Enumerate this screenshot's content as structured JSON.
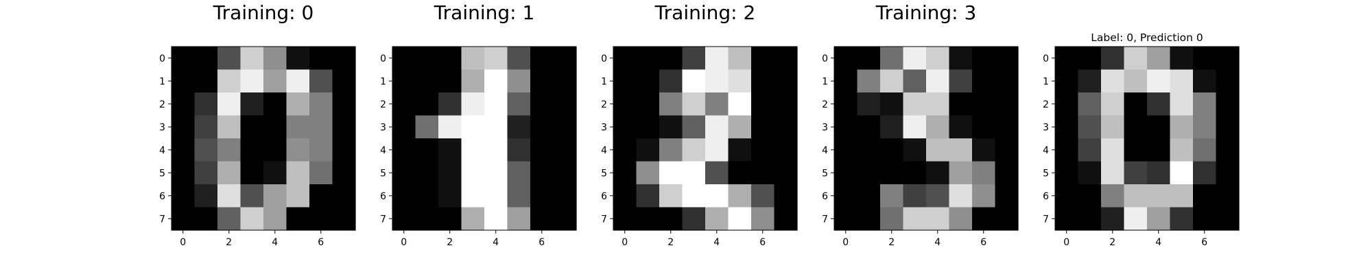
{
  "figure": {
    "background": "#ffffff",
    "colormap": "gray"
  },
  "chart_data": [
    {
      "type": "heatmap",
      "title": "Training: 0",
      "x_ticks": [
        0,
        2,
        4,
        6
      ],
      "y_ticks": [
        0,
        1,
        2,
        3,
        4,
        5,
        6,
        7
      ],
      "xlim": [
        -0.5,
        7.5
      ],
      "ylim": [
        7.5,
        -0.5
      ],
      "value_range": [
        0,
        16
      ],
      "values": [
        [
          0,
          0,
          5,
          13,
          9,
          1,
          0,
          0
        ],
        [
          0,
          0,
          13,
          15,
          10,
          15,
          5,
          0
        ],
        [
          0,
          3,
          15,
          2,
          0,
          11,
          8,
          0
        ],
        [
          0,
          4,
          12,
          0,
          0,
          8,
          8,
          0
        ],
        [
          0,
          5,
          8,
          0,
          0,
          9,
          8,
          0
        ],
        [
          0,
          4,
          11,
          0,
          1,
          12,
          7,
          0
        ],
        [
          0,
          2,
          14,
          5,
          10,
          12,
          0,
          0
        ],
        [
          0,
          0,
          6,
          13,
          10,
          0,
          0,
          0
        ]
      ]
    },
    {
      "type": "heatmap",
      "title": "Training: 1",
      "x_ticks": [
        0,
        2,
        4,
        6
      ],
      "y_ticks": [
        0,
        1,
        2,
        3,
        4,
        5,
        6,
        7
      ],
      "xlim": [
        -0.5,
        7.5
      ],
      "ylim": [
        7.5,
        -0.5
      ],
      "value_range": [
        0,
        16
      ],
      "values": [
        [
          0,
          0,
          0,
          12,
          13,
          5,
          0,
          0
        ],
        [
          0,
          0,
          0,
          11,
          16,
          9,
          0,
          0
        ],
        [
          0,
          0,
          3,
          15,
          16,
          6,
          0,
          0
        ],
        [
          0,
          7,
          15,
          16,
          16,
          2,
          0,
          0
        ],
        [
          0,
          0,
          1,
          16,
          16,
          3,
          0,
          0
        ],
        [
          0,
          0,
          1,
          16,
          16,
          6,
          0,
          0
        ],
        [
          0,
          0,
          1,
          16,
          16,
          6,
          0,
          0
        ],
        [
          0,
          0,
          0,
          11,
          16,
          10,
          0,
          0
        ]
      ]
    },
    {
      "type": "heatmap",
      "title": "Training: 2",
      "x_ticks": [
        0,
        2,
        4,
        6
      ],
      "y_ticks": [
        0,
        1,
        2,
        3,
        4,
        5,
        6,
        7
      ],
      "xlim": [
        -0.5,
        7.5
      ],
      "ylim": [
        7.5,
        -0.5
      ],
      "value_range": [
        0,
        16
      ],
      "values": [
        [
          0,
          0,
          0,
          4,
          15,
          12,
          0,
          0
        ],
        [
          0,
          0,
          3,
          16,
          15,
          14,
          0,
          0
        ],
        [
          0,
          0,
          8,
          13,
          8,
          16,
          0,
          0
        ],
        [
          0,
          0,
          1,
          6,
          15,
          11,
          0,
          0
        ],
        [
          0,
          1,
          8,
          13,
          15,
          1,
          0,
          0
        ],
        [
          0,
          9,
          16,
          16,
          5,
          0,
          0,
          0
        ],
        [
          0,
          3,
          13,
          16,
          16,
          11,
          5,
          0
        ],
        [
          0,
          0,
          0,
          3,
          11,
          16,
          9,
          0
        ]
      ]
    },
    {
      "type": "heatmap",
      "title": "Training: 3",
      "x_ticks": [
        0,
        2,
        4,
        6
      ],
      "y_ticks": [
        0,
        1,
        2,
        3,
        4,
        5,
        6,
        7
      ],
      "xlim": [
        -0.5,
        7.5
      ],
      "ylim": [
        7.5,
        -0.5
      ],
      "value_range": [
        0,
        16
      ],
      "values": [
        [
          0,
          0,
          7,
          15,
          13,
          1,
          0,
          0
        ],
        [
          0,
          8,
          13,
          6,
          15,
          4,
          0,
          0
        ],
        [
          0,
          2,
          1,
          13,
          13,
          0,
          0,
          0
        ],
        [
          0,
          0,
          2,
          15,
          11,
          1,
          0,
          0
        ],
        [
          0,
          0,
          0,
          1,
          12,
          12,
          1,
          0
        ],
        [
          0,
          0,
          0,
          0,
          1,
          10,
          8,
          0
        ],
        [
          0,
          0,
          8,
          4,
          5,
          14,
          9,
          0
        ],
        [
          0,
          0,
          7,
          13,
          13,
          9,
          0,
          0
        ]
      ]
    },
    {
      "type": "heatmap",
      "title": "Label: 0, Prediction 0",
      "x_ticks": [
        0,
        2,
        4,
        6
      ],
      "y_ticks": [
        0,
        1,
        2,
        3,
        4,
        5,
        6,
        7
      ],
      "xlim": [
        -0.5,
        7.5
      ],
      "ylim": [
        7.5,
        -0.5
      ],
      "value_range": [
        0,
        16
      ],
      "values": [
        [
          0,
          0,
          3,
          13,
          10,
          1,
          0,
          0
        ],
        [
          0,
          2,
          14,
          12,
          15,
          14,
          1,
          0
        ],
        [
          0,
          6,
          13,
          0,
          3,
          14,
          8,
          0
        ],
        [
          0,
          5,
          12,
          0,
          0,
          11,
          8,
          0
        ],
        [
          0,
          4,
          14,
          0,
          0,
          12,
          7,
          0
        ],
        [
          0,
          1,
          14,
          4,
          3,
          16,
          3,
          0
        ],
        [
          0,
          0,
          8,
          12,
          12,
          12,
          0,
          0
        ],
        [
          0,
          0,
          2,
          15,
          10,
          3,
          0,
          0
        ]
      ]
    }
  ]
}
